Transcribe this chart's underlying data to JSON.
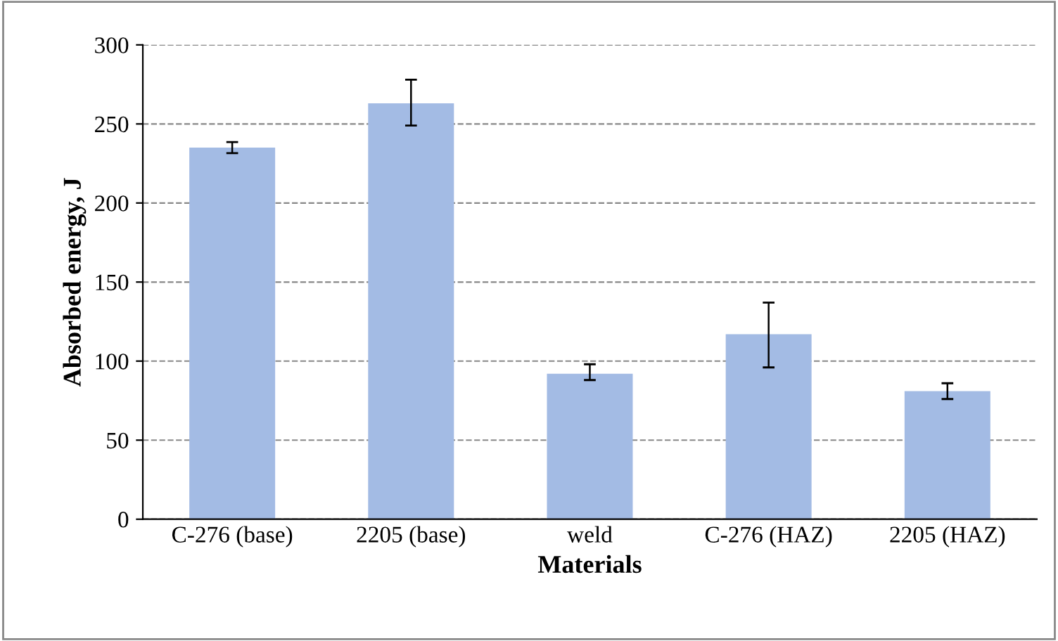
{
  "chart_data": {
    "type": "bar",
    "xlabel": "Materials",
    "ylabel": "Absorbed energy, J",
    "categories": [
      "C-276 (base)",
      "2205 (base)",
      "weld",
      "C-276 (HAZ)",
      "2205 (HAZ)"
    ],
    "values": [
      235,
      263,
      92,
      117,
      81
    ],
    "errors": [
      3.5,
      [
        249,
        278
      ],
      [
        88,
        98
      ],
      [
        96,
        137
      ],
      [
        76,
        86
      ]
    ],
    "color": "#a3bbe4",
    "ylim": [
      0,
      300
    ],
    "yticks": [
      0,
      50,
      100,
      150,
      200,
      250,
      300
    ],
    "grid": "y",
    "line_style": "dashed"
  }
}
